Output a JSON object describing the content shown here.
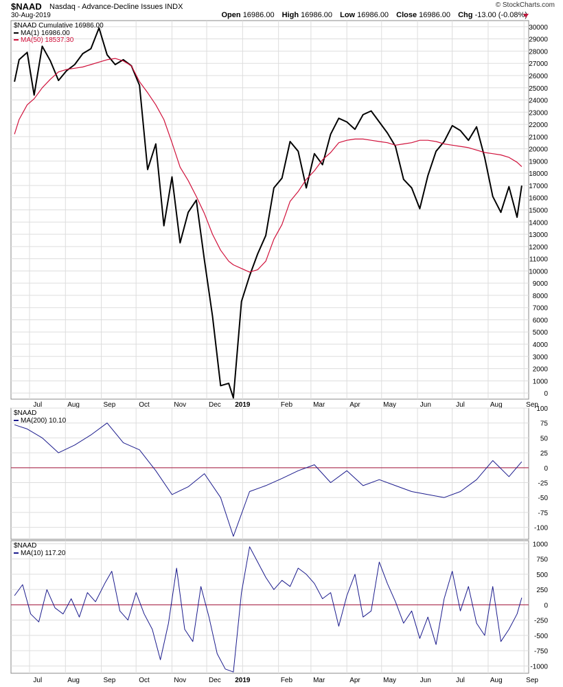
{
  "header": {
    "symbol": "$NAAD",
    "description": "Nasdaq - Advance-Decline Issues",
    "exchange": "INDX",
    "date": "30-Aug-2019",
    "brand": "© StockCharts.com",
    "open_label": "Open",
    "open": "16986.00",
    "high_label": "High",
    "high": "16986.00",
    "low_label": "Low",
    "low": "16986.00",
    "close_label": "Close",
    "close": "16986.00",
    "chg_label": "Chg",
    "chg": "-13.00 (-0.08%)",
    "chg_icon": "down-triangle-icon"
  },
  "colors": {
    "price": "#000000",
    "ma50": "#d0103a",
    "indicator": "#1a1a8c",
    "zero": "#a3133a",
    "grid": "#dddddd"
  },
  "x_labels": [
    {
      "label": "Jul",
      "bold": false
    },
    {
      "label": "Aug",
      "bold": false
    },
    {
      "label": "Sep",
      "bold": false
    },
    {
      "label": "Oct",
      "bold": false
    },
    {
      "label": "Nov",
      "bold": false
    },
    {
      "label": "Dec",
      "bold": false
    },
    {
      "label": "2019",
      "bold": true
    },
    {
      "label": "Feb",
      "bold": false
    },
    {
      "label": "Mar",
      "bold": false
    },
    {
      "label": "Apr",
      "bold": false
    },
    {
      "label": "May",
      "bold": false
    },
    {
      "label": "Jun",
      "bold": false
    },
    {
      "label": "Jul",
      "bold": false
    },
    {
      "label": "Aug",
      "bold": false
    },
    {
      "label": "Sep",
      "bold": false
    }
  ],
  "chart_data": [
    {
      "type": "line",
      "title": "$NAAD Cumulative 16986.00",
      "x": [
        "2018-06-18",
        "2018-06-22",
        "2018-06-29",
        "2018-07-05",
        "2018-07-12",
        "2018-07-19",
        "2018-07-26",
        "2018-08-02",
        "2018-08-09",
        "2018-08-16",
        "2018-08-23",
        "2018-08-30",
        "2018-09-06",
        "2018-09-13",
        "2018-09-20",
        "2018-09-27",
        "2018-10-04",
        "2018-10-11",
        "2018-10-18",
        "2018-10-25",
        "2018-11-01",
        "2018-11-08",
        "2018-11-15",
        "2018-11-22",
        "2018-11-29",
        "2018-12-06",
        "2018-12-13",
        "2018-12-20",
        "2018-12-24",
        "2018-12-31",
        "2019-01-07",
        "2019-01-14",
        "2019-01-21",
        "2019-01-28",
        "2019-02-04",
        "2019-02-11",
        "2019-02-18",
        "2019-02-25",
        "2019-03-04",
        "2019-03-11",
        "2019-03-18",
        "2019-03-25",
        "2019-04-01",
        "2019-04-08",
        "2019-04-15",
        "2019-04-22",
        "2019-04-29",
        "2019-05-06",
        "2019-05-13",
        "2019-05-20",
        "2019-05-27",
        "2019-06-03",
        "2019-06-10",
        "2019-06-17",
        "2019-06-24",
        "2019-07-01",
        "2019-07-08",
        "2019-07-15",
        "2019-07-22",
        "2019-07-29",
        "2019-08-05",
        "2019-08-12",
        "2019-08-19",
        "2019-08-26",
        "2019-08-30"
      ],
      "series": [
        {
          "name": "MA(1) 16986.00",
          "values": [
            25500,
            27300,
            27900,
            24400,
            28400,
            27200,
            25600,
            26400,
            26900,
            27800,
            28200,
            29900,
            27700,
            26900,
            27300,
            26800,
            25200,
            18300,
            20400,
            13700,
            17700,
            12300,
            14800,
            15800,
            10900,
            6300,
            600,
            800,
            -400,
            7500,
            9600,
            11400,
            12900,
            16800,
            17600,
            20600,
            19800,
            16800,
            19600,
            18700,
            21200,
            22500,
            22200,
            21600,
            22800,
            23100,
            22200,
            21300,
            20200,
            17500,
            16800,
            15100,
            17800,
            19800,
            20600,
            21900,
            21500,
            20700,
            21800,
            19300,
            16100,
            14800,
            16900,
            14400,
            16986
          ]
        },
        {
          "name": "MA(50) 18537.30",
          "values": [
            21200,
            22400,
            23600,
            24100,
            25000,
            25700,
            26300,
            26500,
            26600,
            26700,
            26900,
            27100,
            27300,
            27400,
            27200,
            26800,
            25500,
            24600,
            23600,
            22400,
            20500,
            18500,
            17400,
            16100,
            14700,
            13000,
            11700,
            10800,
            10500,
            10200,
            9900,
            10100,
            10800,
            12600,
            13800,
            15700,
            16500,
            17500,
            18200,
            19100,
            19700,
            20500,
            20700,
            20800,
            20800,
            20700,
            20600,
            20500,
            20300,
            20400,
            20500,
            20700,
            20700,
            20600,
            20400,
            20300,
            20200,
            20100,
            19900,
            19700,
            19600,
            19500,
            19300,
            18900,
            18537
          ]
        }
      ],
      "ylim": [
        -500,
        30500
      ],
      "y_ticks": [
        0,
        1000,
        2000,
        3000,
        4000,
        5000,
        6000,
        7000,
        8000,
        9000,
        10000,
        11000,
        12000,
        13000,
        14000,
        15000,
        16000,
        17000,
        18000,
        19000,
        20000,
        21000,
        22000,
        23000,
        24000,
        25000,
        26000,
        27000,
        28000,
        29000,
        30000
      ],
      "legend": "top-left",
      "grid": true
    },
    {
      "type": "line",
      "title": "$NAAD",
      "x": [
        "2018-06-18",
        "2018-06-29",
        "2018-07-12",
        "2018-07-26",
        "2018-08-09",
        "2018-08-23",
        "2018-09-06",
        "2018-09-20",
        "2018-10-04",
        "2018-10-18",
        "2018-11-01",
        "2018-11-15",
        "2018-11-29",
        "2018-12-13",
        "2018-12-24",
        "2019-01-07",
        "2019-01-21",
        "2019-02-04",
        "2019-02-18",
        "2019-03-04",
        "2019-03-18",
        "2019-04-01",
        "2019-04-15",
        "2019-04-29",
        "2019-05-13",
        "2019-05-27",
        "2019-06-10",
        "2019-06-24",
        "2019-07-08",
        "2019-07-22",
        "2019-08-05",
        "2019-08-19",
        "2019-08-30"
      ],
      "series": [
        {
          "name": "MA(200) 10.10",
          "values": [
            72,
            65,
            50,
            25,
            38,
            55,
            75,
            42,
            30,
            -5,
            -45,
            -32,
            -10,
            -50,
            -115,
            -40,
            -30,
            -18,
            -5,
            5,
            -25,
            -5,
            -30,
            -20,
            -30,
            -40,
            -45,
            -50,
            -40,
            -20,
            12,
            -15,
            10
          ]
        }
      ],
      "ylim": [
        -120,
        100
      ],
      "y_ticks": [
        -100,
        -75,
        -50,
        -25,
        0,
        25,
        50,
        75,
        100
      ],
      "reference_line": 0,
      "legend": "top-left",
      "grid": true
    },
    {
      "type": "line",
      "title": "$NAAD",
      "x": [
        "2018-06-18",
        "2018-06-25",
        "2018-07-02",
        "2018-07-09",
        "2018-07-16",
        "2018-07-23",
        "2018-07-30",
        "2018-08-06",
        "2018-08-13",
        "2018-08-20",
        "2018-08-27",
        "2018-09-04",
        "2018-09-10",
        "2018-09-17",
        "2018-09-24",
        "2018-10-01",
        "2018-10-08",
        "2018-10-15",
        "2018-10-22",
        "2018-10-29",
        "2018-11-05",
        "2018-11-12",
        "2018-11-19",
        "2018-11-26",
        "2018-12-03",
        "2018-12-10",
        "2018-12-17",
        "2018-12-24",
        "2018-12-31",
        "2019-01-07",
        "2019-01-14",
        "2019-01-21",
        "2019-01-28",
        "2019-02-04",
        "2019-02-11",
        "2019-02-18",
        "2019-02-25",
        "2019-03-04",
        "2019-03-11",
        "2019-03-18",
        "2019-03-25",
        "2019-04-01",
        "2019-04-08",
        "2019-04-15",
        "2019-04-22",
        "2019-04-29",
        "2019-05-06",
        "2019-05-13",
        "2019-05-20",
        "2019-05-27",
        "2019-06-03",
        "2019-06-10",
        "2019-06-17",
        "2019-06-24",
        "2019-07-01",
        "2019-07-08",
        "2019-07-15",
        "2019-07-22",
        "2019-07-29",
        "2019-08-05",
        "2019-08-12",
        "2019-08-19",
        "2019-08-26",
        "2019-08-30"
      ],
      "series": [
        {
          "name": "MA(10) 117.20",
          "values": [
            150,
            330,
            -150,
            -280,
            250,
            -50,
            -150,
            100,
            -200,
            200,
            50,
            350,
            550,
            -100,
            -250,
            200,
            -150,
            -400,
            -900,
            -300,
            600,
            -400,
            -600,
            300,
            -200,
            -800,
            -1050,
            -1100,
            200,
            950,
            700,
            450,
            250,
            400,
            300,
            600,
            500,
            350,
            100,
            200,
            -350,
            150,
            500,
            -200,
            -100,
            700,
            350,
            50,
            -300,
            -100,
            -550,
            -200,
            -650,
            100,
            550,
            -100,
            300,
            -300,
            -500,
            300,
            -600,
            -400,
            -150,
            117
          ]
        }
      ],
      "ylim": [
        -1120,
        1050
      ],
      "y_ticks": [
        -1000,
        -750,
        -500,
        -250,
        0,
        250,
        500,
        750,
        1000
      ],
      "reference_line": 0,
      "legend": "top-left",
      "grid": true
    }
  ]
}
